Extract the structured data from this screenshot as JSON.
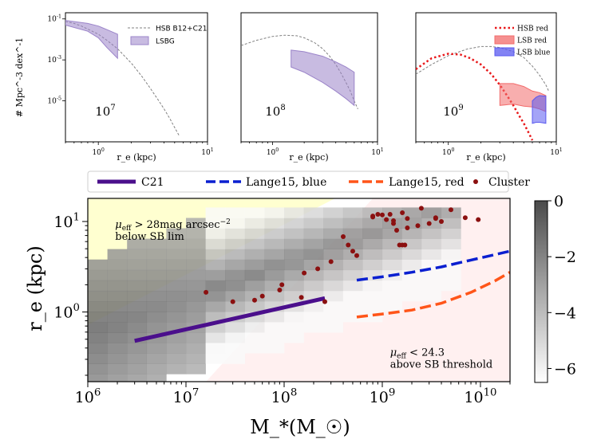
{
  "figure_title": "",
  "chart_data": [
    {
      "type": "line",
      "panel": "top-left",
      "panel_label": "10^7",
      "xlabel": "r_e (kpc)",
      "ylabel": "# Mpc^-3 dex^-1",
      "xscale": "log",
      "yscale": "log",
      "xlim": [
        0.5,
        10
      ],
      "ylim": [
        1e-07,
        0.2
      ],
      "xticks": [
        {
          "v": 1,
          "label": "10^0"
        },
        {
          "v": 10,
          "label": "10^1"
        }
      ],
      "yticks": [
        {
          "v": 0.1,
          "label": "10^-1"
        },
        {
          "v": 0.001,
          "label": "10^-3"
        },
        {
          "v": 1e-05,
          "label": "10^-5"
        }
      ],
      "legend": [
        {
          "label": "HSB B12+C21",
          "style": "dashed",
          "color": "#808080"
        },
        {
          "label": "LSBG",
          "style": "band",
          "color": "#9b84c9"
        }
      ],
      "series": [
        {
          "name": "HSB B12+C21",
          "style": "dashed",
          "color": "#808080",
          "x": [
            0.5,
            0.6,
            0.7,
            0.8,
            1.0,
            1.2,
            1.5,
            2.0,
            2.5,
            3.0,
            3.5,
            4.0,
            4.5,
            5.0,
            5.5
          ],
          "y": [
            0.075,
            0.06,
            0.045,
            0.032,
            0.018,
            0.009,
            0.0035,
            0.0007,
            0.00016,
            4e-05,
            1.2e-05,
            4e-06,
            1.4e-06,
            5e-07,
            2e-07
          ]
        },
        {
          "name": "LSBG",
          "style": "band",
          "color": "#9b84c9",
          "x": [
            0.5,
            0.8,
            1.0,
            1.2,
            1.5
          ],
          "upper": [
            0.085,
            0.06,
            0.045,
            0.03,
            0.018
          ],
          "lower": [
            0.05,
            0.025,
            0.012,
            0.004,
            0.0012
          ]
        }
      ]
    },
    {
      "type": "line",
      "panel": "top-middle",
      "panel_label": "10^8",
      "xlabel": "r_e (kpc)",
      "xscale": "log",
      "yscale": "log",
      "xlim": [
        0.5,
        10
      ],
      "ylim": [
        1e-07,
        0.2
      ],
      "xticks": [
        {
          "v": 1,
          "label": "10^0"
        },
        {
          "v": 10,
          "label": "10^1"
        }
      ],
      "series": [
        {
          "name": "HSB B12+C21",
          "style": "dashed",
          "color": "#808080",
          "x": [
            0.5,
            0.7,
            1.0,
            1.3,
            1.7,
            2.0,
            2.5,
            3.0,
            3.5,
            4.0,
            4.5,
            5.0,
            5.5,
            6.0,
            6.5
          ],
          "y": [
            0.005,
            0.009,
            0.014,
            0.016,
            0.015,
            0.012,
            0.007,
            0.0035,
            0.0015,
            0.0006,
            0.00022,
            8e-05,
            3e-05,
            1e-05,
            4e-06
          ]
        },
        {
          "name": "LSBG",
          "style": "band",
          "color": "#9b84c9",
          "x": [
            1.5,
            2.0,
            3.0,
            4.0,
            5.0,
            6.0
          ],
          "upper": [
            0.003,
            0.0025,
            0.0015,
            0.0008,
            0.00045,
            0.00025
          ],
          "lower": [
            0.00045,
            0.00025,
            8e-05,
            3e-05,
            1.3e-05,
            6e-06
          ]
        }
      ]
    },
    {
      "type": "line",
      "panel": "top-right",
      "panel_label": "10^9",
      "xlabel": "r_e (kpc)",
      "xscale": "log",
      "yscale": "log",
      "xlim": [
        0.5,
        10
      ],
      "ylim": [
        1e-07,
        0.2
      ],
      "xticks": [
        {
          "v": 1,
          "label": "10^0"
        },
        {
          "v": 10,
          "label": "10^1"
        }
      ],
      "legend": [
        {
          "label": "HSB red",
          "style": "dotted",
          "color": "#e8191b"
        },
        {
          "label": "LSB red",
          "style": "band",
          "color": "#f26b6b"
        },
        {
          "label": "LSB blue",
          "style": "band",
          "color": "#5a5af0"
        }
      ],
      "series": [
        {
          "name": "HSB B12+C21",
          "style": "dashed",
          "color": "#808080",
          "x": [
            0.5,
            0.7,
            1.0,
            1.5,
            2.0,
            2.5,
            3.0,
            4.0,
            5.0,
            6.0,
            7.0,
            8.0,
            8.5
          ],
          "y": [
            0.0002,
            0.0006,
            0.0016,
            0.0034,
            0.0045,
            0.0045,
            0.004,
            0.0025,
            0.0013,
            0.0005,
            0.00018,
            6e-05,
            3e-05
          ]
        },
        {
          "name": "HSB red",
          "style": "dotted",
          "color": "#e8191b",
          "x": [
            0.5,
            0.7,
            1.0,
            1.3,
            1.6,
            2.0,
            2.5,
            3.0,
            3.5,
            4.0,
            4.5,
            5.0,
            5.5,
            6.0
          ],
          "y": [
            0.00035,
            0.0012,
            0.002,
            0.0018,
            0.0012,
            0.0006,
            0.0002,
            6e-05,
            1.8e-05,
            6e-06,
            2e-06,
            8e-07,
            3e-07,
            1.2e-07
          ]
        },
        {
          "name": "LSB red",
          "style": "band",
          "color": "#f26b6b",
          "x": [
            3.0,
            4.0,
            5.0,
            6.0,
            7.0,
            8.0
          ],
          "upper": [
            7e-05,
            7e-05,
            5e-05,
            3e-05,
            2.5e-05,
            1.8e-05
          ],
          "lower": [
            6e-06,
            7e-06,
            5.5e-06,
            5e-06,
            4e-06,
            3e-06
          ]
        },
        {
          "name": "LSB blue",
          "style": "band",
          "color": "#5a5af0",
          "x": [
            6.0,
            6.5,
            7.0,
            8.0
          ],
          "upper": [
            1e-05,
            1.5e-05,
            1.8e-05,
            1.7e-05
          ],
          "lower": [
            8e-07,
            9e-07,
            9e-07,
            8e-07
          ]
        }
      ]
    },
    {
      "type": "heatmap",
      "panel": "bottom",
      "xlabel": "M_*(M_☉)",
      "ylabel": "r_e (kpc)",
      "xscale": "log",
      "yscale": "log",
      "xlim": [
        1000000,
        20000000000
      ],
      "ylim": [
        0.17,
        18
      ],
      "xticks": [
        {
          "v": 1000000,
          "label": "10^6"
        },
        {
          "v": 10000000,
          "label": "10^7"
        },
        {
          "v": 100000000,
          "label": "10^8"
        },
        {
          "v": 1000000000,
          "label": "10^9"
        },
        {
          "v": 10000000000,
          "label": "10^10"
        }
      ],
      "yticks": [
        {
          "v": 1,
          "label": "10^0"
        },
        {
          "v": 10,
          "label": "10^1"
        }
      ],
      "colorbar": {
        "min": -6.5,
        "max": 0,
        "ticks": [
          0,
          -2,
          -4,
          -6
        ],
        "cmap": "greys"
      },
      "annotations": [
        {
          "text_main": "μ_eff > 28mag arcsec^−2",
          "text_sub": "below SB lim",
          "x": 1900000,
          "y": 8.5
        },
        {
          "text_main": "μ_eff < 24.3",
          "text_sub": "above SB threshold",
          "x": 1200000000,
          "y": 0.33
        }
      ],
      "regions": [
        {
          "name": "below SB lim",
          "color": "#ffffd0"
        },
        {
          "name": "above SB threshold",
          "color": "#fff0f0"
        }
      ],
      "legend": [
        {
          "label": "C21",
          "style": "solid",
          "color": "#4b0f8c"
        },
        {
          "label": "Lange15, blue",
          "style": "dashed",
          "color": "#0a1fd0"
        },
        {
          "label": "Lange15, red",
          "style": "dashed",
          "color": "#ff5519"
        },
        {
          "label": "Cluster",
          "style": "marker",
          "color": "#8b1010"
        }
      ],
      "series": [
        {
          "name": "C21",
          "style": "solid",
          "color": "#4b0f8c",
          "x": [
            3000000,
            260000000
          ],
          "y": [
            0.48,
            1.42
          ]
        },
        {
          "name": "Lange15, blue",
          "style": "dashed",
          "color": "#0a1fd0",
          "x": [
            550000000,
            1000000000,
            2000000000,
            4000000000,
            8000000000,
            14000000000,
            20000000000
          ],
          "y": [
            2.25,
            2.45,
            2.75,
            3.15,
            3.75,
            4.3,
            4.7
          ]
        },
        {
          "name": "Lange15, red",
          "style": "dashed",
          "color": "#ff5519",
          "x": [
            550000000,
            1000000000,
            2000000000,
            4000000000,
            8000000000,
            14000000000,
            20000000000
          ],
          "y": [
            0.88,
            0.95,
            1.05,
            1.25,
            1.65,
            2.2,
            2.75
          ]
        },
        {
          "name": "Cluster",
          "style": "marker",
          "color": "#8b1010",
          "x": [
            16000000,
            30000000,
            50000000,
            90000000,
            150000000,
            260000000,
            60000000,
            95000000,
            160000000,
            220000000,
            300000000,
            400000000,
            450000000,
            500000000,
            550000000,
            800000000,
            900000000,
            1000000000,
            1100000000,
            1200000000,
            1300000000,
            1400000000,
            1500000000,
            1600000000,
            1700000000,
            1800000000,
            2500000000,
            3000000000,
            3500000000,
            4000000000,
            5000000000,
            7000000000,
            9500000000,
            1600000000,
            1800000000,
            800000000,
            1300000000,
            2300000000,
            3500000000
          ],
          "y": [
            1.65,
            1.3,
            1.35,
            1.75,
            1.45,
            1.3,
            1.5,
            2.0,
            2.7,
            3.0,
            3.6,
            6.8,
            5.5,
            4.7,
            4.2,
            11.5,
            12.0,
            11.8,
            10.5,
            12.0,
            9.5,
            8.0,
            5.5,
            5.5,
            5.5,
            8.5,
            14.0,
            9.5,
            11.0,
            10.0,
            13.5,
            11.0,
            10.5,
            12.5,
            10.8,
            11.2,
            10.2,
            9.0,
            10.8
          ]
        }
      ]
    }
  ]
}
